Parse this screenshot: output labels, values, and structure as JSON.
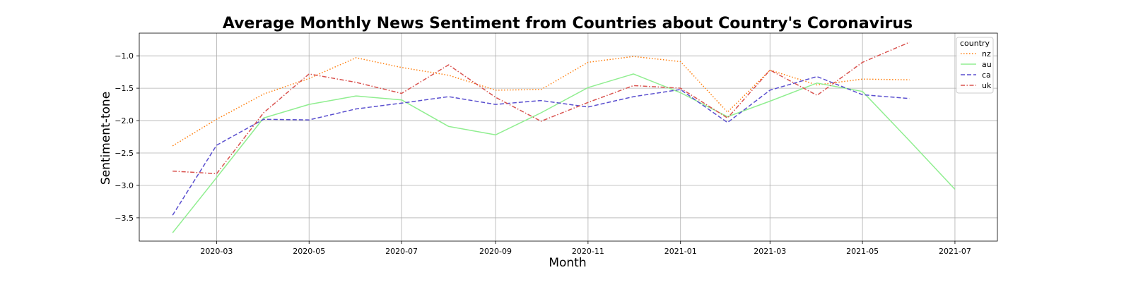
{
  "chart_data": {
    "type": "line",
    "title": "Average Monthly News Sentiment from Countries about Country's Coronavirus",
    "xlabel": "Month",
    "ylabel": "Sentiment-tone",
    "x": [
      "2020-02-01",
      "2020-03-01",
      "2020-04-01",
      "2020-05-01",
      "2020-06-01",
      "2020-07-01",
      "2020-08-01",
      "2020-09-01",
      "2020-10-01",
      "2020-11-01",
      "2020-12-01",
      "2021-01-01",
      "2021-02-01",
      "2021-03-01",
      "2021-04-01",
      "2021-05-01",
      "2021-06-01",
      "2021-07-01"
    ],
    "xticks": [
      "2020-03",
      "2020-05",
      "2020-07",
      "2020-09",
      "2020-11",
      "2021-01",
      "2021-03",
      "2021-05",
      "2021-07"
    ],
    "xlim": [
      "2020-01-10",
      "2021-07-29"
    ],
    "ylim": [
      -3.86,
      -0.65
    ],
    "yticks": [
      -1.0,
      -1.5,
      -2.0,
      -2.5,
      -3.0,
      -3.5
    ],
    "yticklabels": [
      "−1.0",
      "−1.5",
      "−2.0",
      "−2.5",
      "−3.0",
      "−3.5"
    ],
    "grid": true,
    "legend": {
      "title": "country",
      "placement": "top-right"
    },
    "series": [
      {
        "name": "nz",
        "color": "#ff7f0e",
        "dash": "dotted",
        "values": [
          -2.39,
          -1.98,
          -1.59,
          -1.35,
          -1.03,
          -1.18,
          -1.3,
          -1.53,
          -1.52,
          -1.1,
          -1.01,
          -1.09,
          -1.87,
          -1.22,
          -1.45,
          -1.36,
          -1.37,
          null
        ]
      },
      {
        "name": "au",
        "color": "#90ee90",
        "dash": "solid",
        "values": [
          -3.73,
          -2.88,
          -1.96,
          -1.75,
          -1.62,
          -1.68,
          -2.09,
          -2.22,
          -1.88,
          -1.49,
          -1.28,
          -1.57,
          -1.94,
          -1.7,
          -1.42,
          -1.55,
          -2.31,
          -3.06
        ]
      },
      {
        "name": "ca",
        "color": "#5a4fcf",
        "dash": "dashed",
        "values": [
          -3.46,
          -2.38,
          -1.98,
          -1.99,
          -1.82,
          -1.73,
          -1.63,
          -1.75,
          -1.69,
          -1.79,
          -1.63,
          -1.52,
          -2.03,
          -1.53,
          -1.32,
          -1.6,
          -1.66,
          null
        ]
      },
      {
        "name": "uk",
        "color": "#d9534f",
        "dash": "dashdot",
        "values": [
          -2.78,
          -2.82,
          -1.88,
          -1.28,
          -1.41,
          -1.58,
          -1.14,
          -1.64,
          -2.01,
          -1.72,
          -1.46,
          -1.5,
          -1.96,
          -1.22,
          -1.61,
          -1.1,
          -0.79,
          null
        ]
      }
    ]
  }
}
